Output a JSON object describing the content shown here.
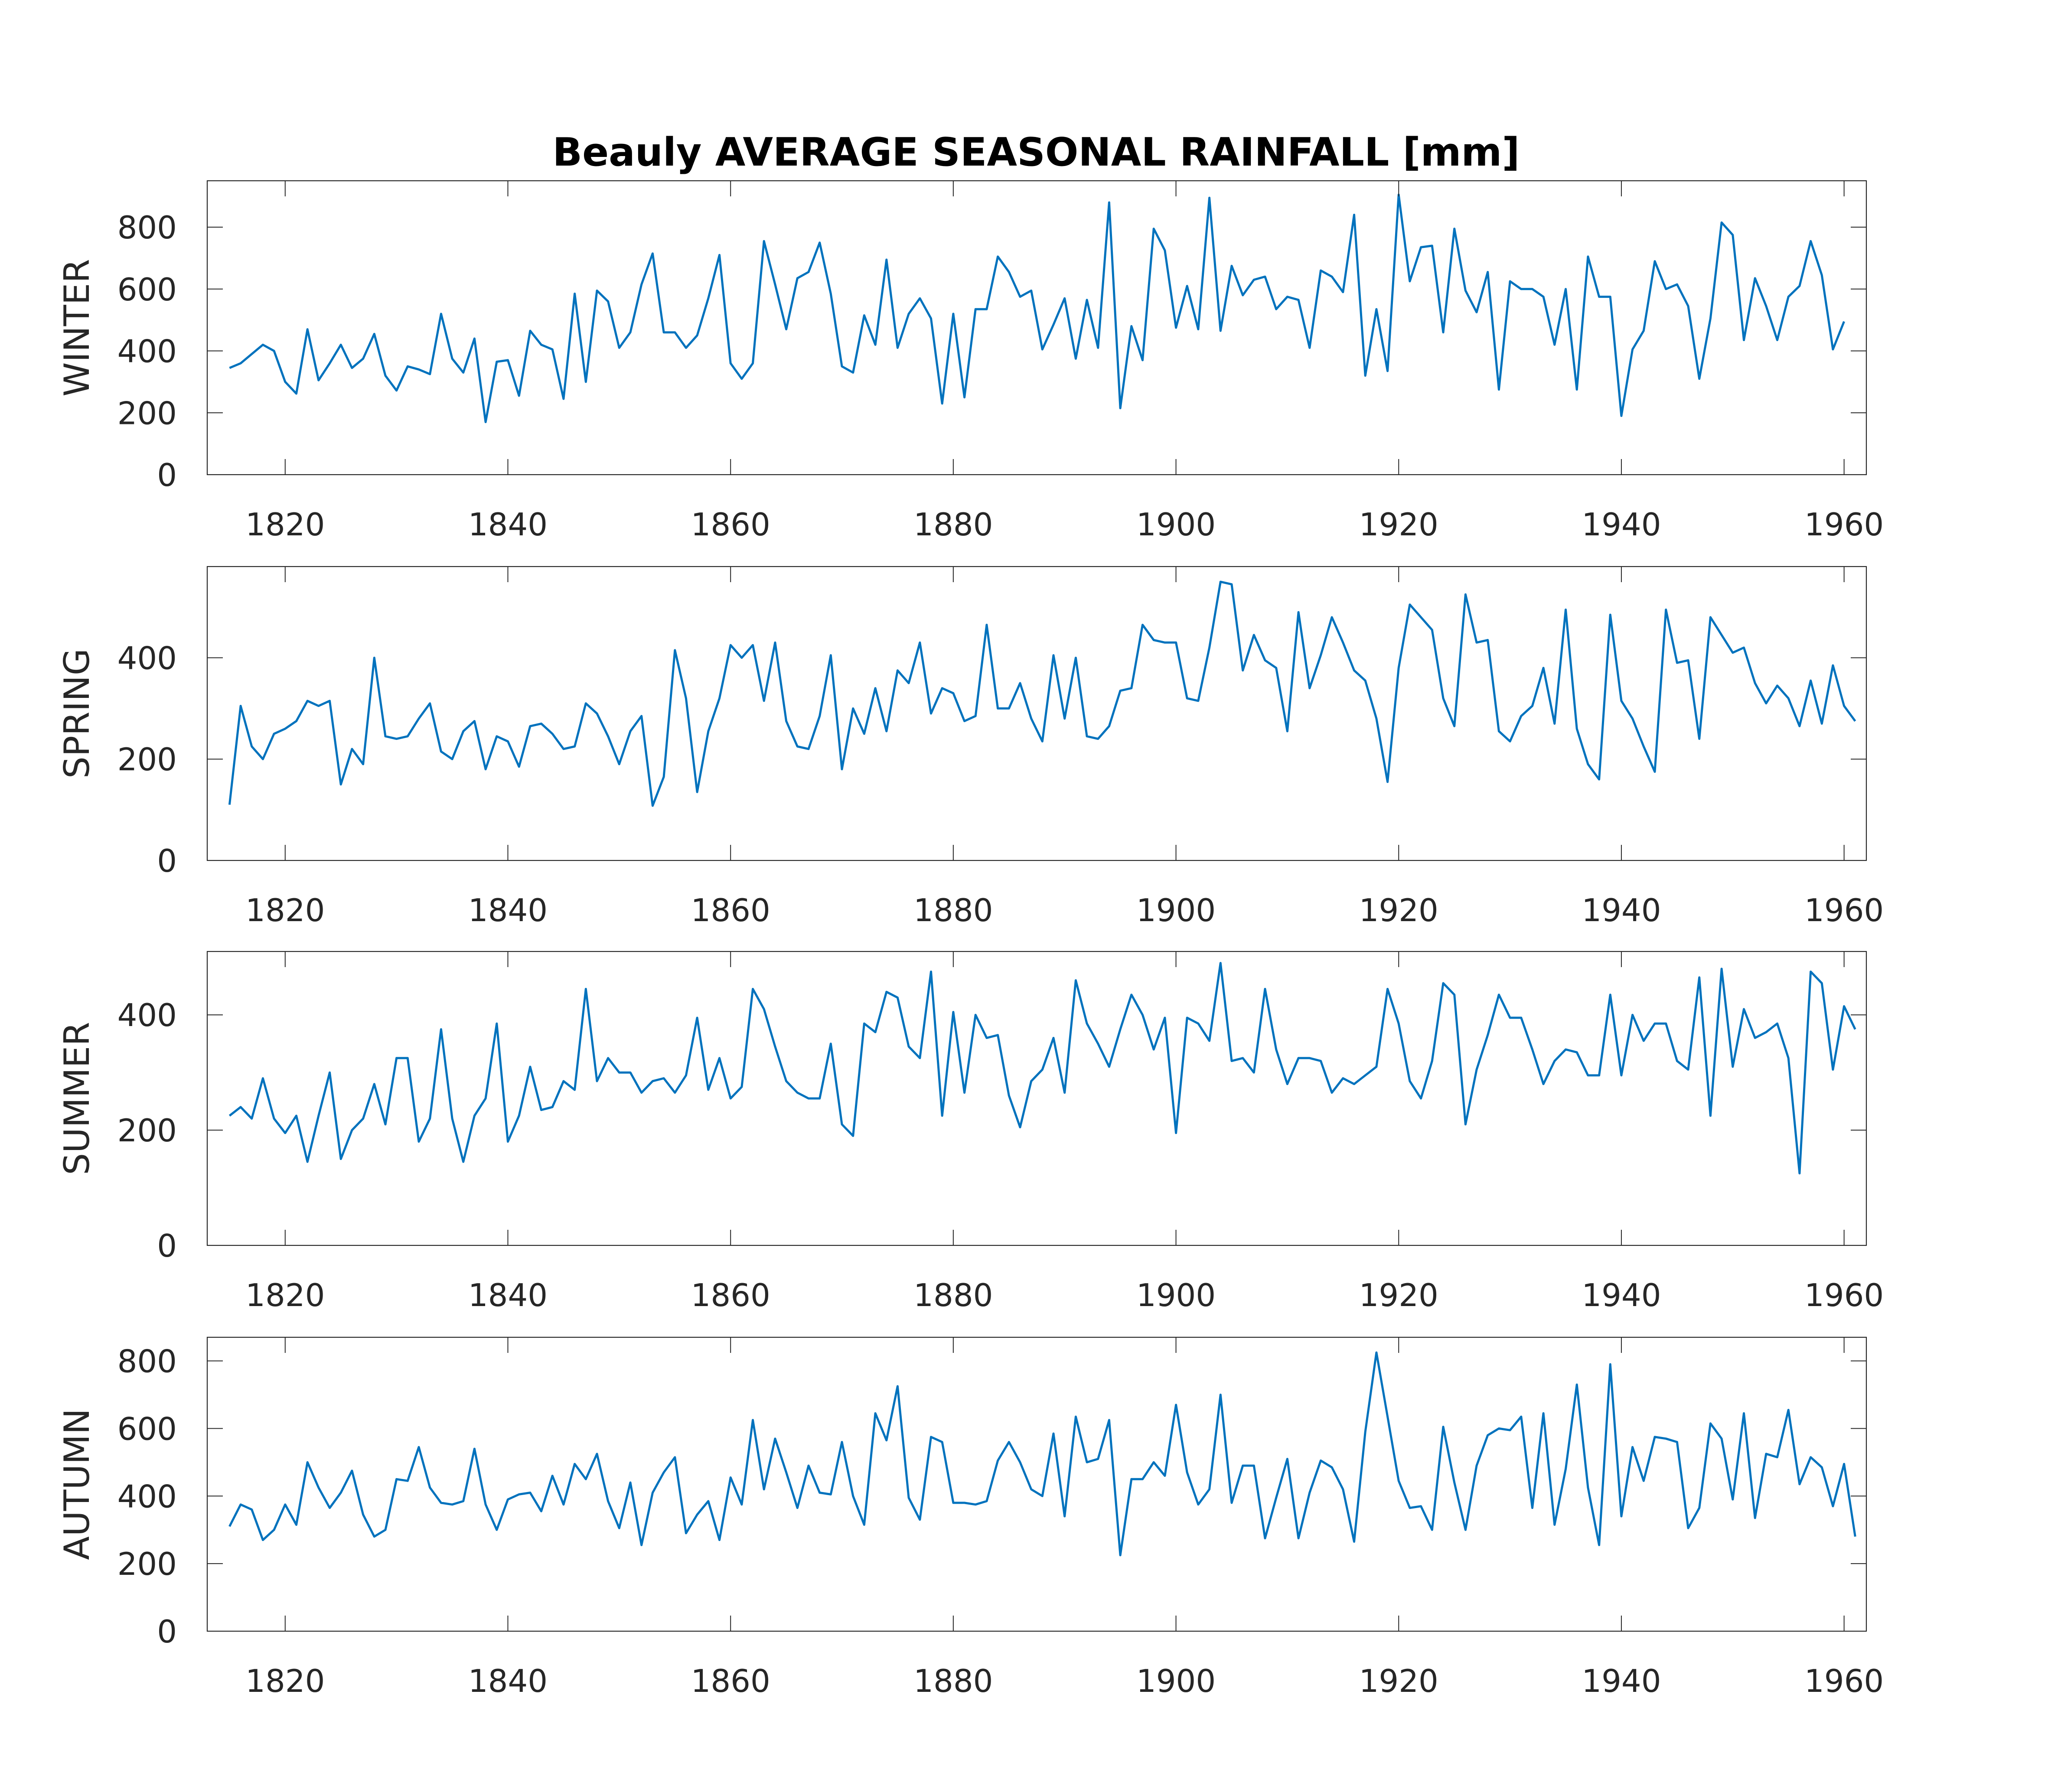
{
  "chart_data": {
    "type": "line",
    "title": "Beauly AVERAGE SEASONAL RAINFALL [mm]",
    "series_color": "#0072bd",
    "xlim": [
      1813,
      1962
    ],
    "x_ticks": [
      1820,
      1840,
      1860,
      1880,
      1900,
      1920,
      1940,
      1960
    ],
    "x_tick_labels": [
      "1820",
      "1840",
      "1860",
      "1880",
      "1900",
      "1920",
      "1940",
      "1960"
    ],
    "grid": false,
    "x_start": 1815,
    "panels": [
      {
        "ylabel": "WINTER",
        "ylim": [
          0,
          950
        ],
        "y_ticks": [
          0,
          200,
          400,
          600,
          800
        ],
        "y_tick_labels": [
          "0",
          "200",
          "400",
          "600",
          "800"
        ],
        "values": [
          345,
          360,
          390,
          420,
          400,
          300,
          262,
          470,
          305,
          360,
          420,
          345,
          375,
          455,
          320,
          272,
          350,
          340,
          325,
          520,
          375,
          330,
          440,
          170,
          365,
          370,
          255,
          465,
          420,
          405,
          245,
          585,
          300,
          595,
          560,
          410,
          460,
          615,
          715,
          460,
          460,
          410,
          450,
          570,
          710,
          360,
          310,
          360,
          755,
          615,
          470,
          635,
          655,
          750,
          585,
          350,
          330,
          515,
          420,
          695,
          410,
          520,
          570,
          505,
          230,
          520,
          250,
          535,
          535,
          705,
          655,
          575,
          595,
          405,
          485,
          570,
          375,
          565,
          410,
          880,
          215,
          480,
          370,
          795,
          725,
          475,
          610,
          470,
          895,
          465,
          675,
          580,
          630,
          640,
          535,
          575,
          565,
          410,
          660,
          640,
          590,
          840,
          320,
          535,
          335,
          905,
          625,
          735,
          740,
          460,
          795,
          595,
          525,
          655,
          275,
          625,
          600,
          600,
          575,
          420,
          600,
          275,
          705,
          575,
          575,
          190,
          405,
          465,
          690,
          600,
          615,
          545,
          310,
          505,
          815,
          775,
          435,
          635,
          545,
          435,
          575,
          610,
          755,
          645,
          405,
          495
        ]
      },
      {
        "ylabel": "SPRING",
        "ylim": [
          0,
          580
        ],
        "y_ticks": [
          0,
          200,
          400
        ],
        "y_tick_labels": [
          "0",
          "200",
          "400"
        ],
        "values": [
          110,
          305,
          225,
          200,
          250,
          260,
          275,
          315,
          305,
          315,
          150,
          220,
          190,
          400,
          245,
          240,
          245,
          280,
          310,
          215,
          200,
          255,
          275,
          180,
          245,
          235,
          185,
          265,
          270,
          250,
          220,
          225,
          310,
          290,
          245,
          190,
          255,
          285,
          108,
          165,
          415,
          320,
          135,
          255,
          320,
          425,
          400,
          425,
          315,
          430,
          275,
          225,
          220,
          285,
          405,
          180,
          300,
          250,
          340,
          255,
          375,
          350,
          430,
          290,
          340,
          330,
          275,
          285,
          465,
          300,
          300,
          350,
          280,
          235,
          405,
          280,
          400,
          245,
          240,
          265,
          335,
          340,
          465,
          435,
          430,
          430,
          320,
          315,
          420,
          550,
          545,
          375,
          445,
          395,
          380,
          255,
          490,
          340,
          405,
          480,
          430,
          375,
          355,
          280,
          155,
          380,
          505,
          480,
          455,
          320,
          265,
          525,
          430,
          435,
          255,
          235,
          285,
          305,
          380,
          270,
          495,
          260,
          190,
          160,
          485,
          315,
          280,
          225,
          175,
          495,
          390,
          395,
          240,
          480,
          445,
          410,
          420,
          350,
          310,
          345,
          320,
          265,
          355,
          270,
          385,
          305,
          275
        ]
      },
      {
        "ylabel": "SUMMER",
        "ylim": [
          0,
          510
        ],
        "y_ticks": [
          0,
          200,
          400
        ],
        "y_tick_labels": [
          "0",
          "200",
          "400"
        ],
        "values": [
          225,
          240,
          220,
          290,
          220,
          195,
          225,
          145,
          225,
          300,
          150,
          200,
          220,
          280,
          210,
          325,
          325,
          180,
          220,
          375,
          220,
          145,
          225,
          255,
          385,
          180,
          225,
          310,
          235,
          240,
          285,
          270,
          445,
          285,
          325,
          300,
          300,
          265,
          285,
          290,
          265,
          295,
          395,
          270,
          325,
          255,
          275,
          445,
          410,
          345,
          285,
          265,
          255,
          255,
          350,
          210,
          190,
          385,
          370,
          440,
          430,
          345,
          325,
          475,
          225,
          405,
          265,
          400,
          360,
          365,
          260,
          205,
          285,
          305,
          360,
          265,
          460,
          385,
          350,
          310,
          375,
          435,
          400,
          340,
          395,
          195,
          395,
          385,
          355,
          490,
          320,
          325,
          300,
          445,
          340,
          280,
          325,
          325,
          320,
          265,
          290,
          280,
          295,
          310,
          445,
          385,
          285,
          255,
          320,
          455,
          435,
          210,
          305,
          365,
          435,
          395,
          395,
          340,
          280,
          320,
          340,
          335,
          295,
          295,
          435,
          295,
          400,
          355,
          385,
          385,
          320,
          305,
          465,
          225,
          480,
          310,
          410,
          360,
          370,
          385,
          325,
          125,
          475,
          455,
          305,
          415,
          375
        ]
      },
      {
        "ylabel": "AUTUMN",
        "ylim": [
          0,
          870
        ],
        "y_ticks": [
          0,
          200,
          400,
          600,
          800
        ],
        "y_tick_labels": [
          "0",
          "200",
          "400",
          "600",
          "800"
        ],
        "values": [
          310,
          375,
          360,
          270,
          300,
          375,
          315,
          500,
          425,
          365,
          410,
          475,
          345,
          280,
          300,
          450,
          445,
          545,
          425,
          380,
          375,
          385,
          540,
          375,
          300,
          390,
          405,
          410,
          355,
          460,
          375,
          495,
          450,
          525,
          385,
          305,
          440,
          255,
          410,
          470,
          515,
          290,
          345,
          385,
          270,
          455,
          375,
          625,
          420,
          570,
          470,
          365,
          490,
          410,
          405,
          560,
          400,
          315,
          645,
          565,
          725,
          395,
          330,
          575,
          560,
          380,
          380,
          375,
          385,
          505,
          560,
          500,
          420,
          400,
          585,
          340,
          635,
          500,
          510,
          625,
          225,
          450,
          450,
          500,
          460,
          670,
          470,
          375,
          420,
          700,
          380,
          490,
          490,
          275,
          395,
          510,
          275,
          410,
          505,
          485,
          420,
          265,
          590,
          825,
          635,
          445,
          365,
          370,
          300,
          605,
          440,
          300,
          490,
          580,
          600,
          595,
          635,
          365,
          645,
          315,
          480,
          730,
          425,
          255,
          790,
          340,
          545,
          445,
          575,
          570,
          560,
          305,
          365,
          615,
          570,
          390,
          645,
          335,
          525,
          515,
          655,
          435,
          515,
          485,
          370,
          495,
          280
        ]
      }
    ]
  }
}
